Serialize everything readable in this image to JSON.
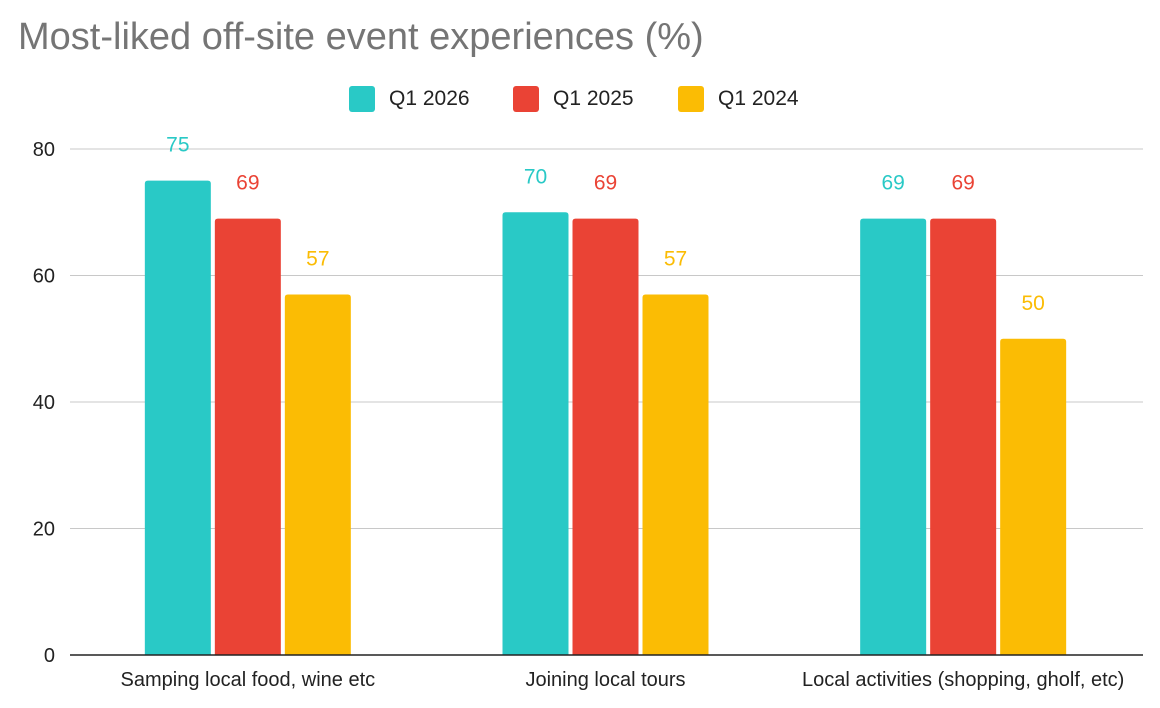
{
  "chart_data": {
    "type": "bar",
    "title": "Most-liked off-site event experiences (%)",
    "categories": [
      "Samping local food, wine etc",
      "Joining local tours",
      "Local activities (shopping, gholf, etc)"
    ],
    "series": [
      {
        "name": "Q1 2026",
        "color": "#29c9c6",
        "values": [
          75,
          70,
          69
        ]
      },
      {
        "name": "Q1 2025",
        "color": "#ea4335",
        "values": [
          69,
          69,
          69
        ]
      },
      {
        "name": "Q1 2024",
        "color": "#fbbc04",
        "values": [
          57,
          57,
          50
        ]
      }
    ],
    "ylim": [
      0,
      80
    ],
    "yticks": [
      0,
      20,
      40,
      60,
      80
    ],
    "grid": true,
    "legend": "top-center",
    "data_labels": true
  }
}
